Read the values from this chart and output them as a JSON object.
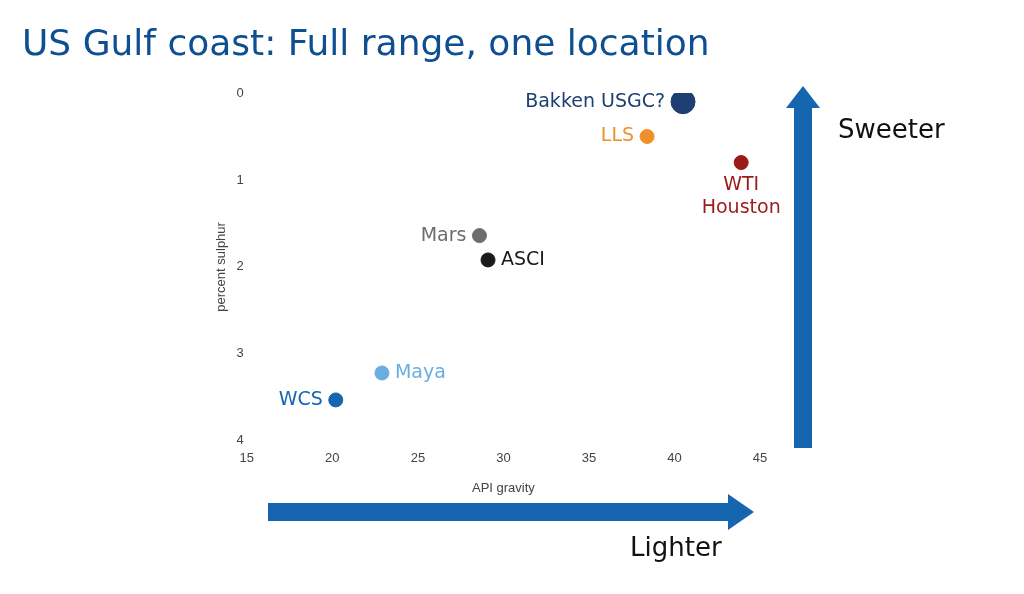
{
  "chart_data": {
    "type": "scatter",
    "title": "US Gulf coast: Full range, one location",
    "xlabel": "API gravity",
    "ylabel": "percent sulphur",
    "xlim": [
      15,
      45
    ],
    "xticks": [
      15,
      20,
      25,
      30,
      35,
      40,
      45
    ],
    "ylim": [
      4,
      0
    ],
    "yticks": [
      0,
      1,
      2,
      3,
      4
    ],
    "grid": false,
    "legend": false,
    "marker": "circle",
    "series": [
      {
        "name": "Bakken USGC?",
        "color": "#1f3f73",
        "x": [
          40.5
        ],
        "values": [
          0.1
        ]
      },
      {
        "name": "LLS",
        "color": "#f0902a",
        "x": [
          38.4
        ],
        "values": [
          0.5
        ]
      },
      {
        "name": "WTI Houston",
        "color": "#9b1b1b",
        "x": [
          43.9
        ],
        "values": [
          0.8
        ]
      },
      {
        "name": "Mars",
        "color": "#6d6d6d",
        "x": [
          28.6
        ],
        "values": [
          1.64
        ]
      },
      {
        "name": "ASCI",
        "color": "#1a1a1a",
        "x": [
          29.1
        ],
        "values": [
          1.92
        ]
      },
      {
        "name": "Maya",
        "color": "#6aaee0",
        "x": [
          22.9
        ],
        "values": [
          3.22
        ]
      },
      {
        "name": "WCS",
        "color": "#1565b0",
        "x": [
          20.2
        ],
        "values": [
          3.53
        ]
      }
    ],
    "annotations": [
      "Sweeter",
      "Lighter"
    ]
  }
}
